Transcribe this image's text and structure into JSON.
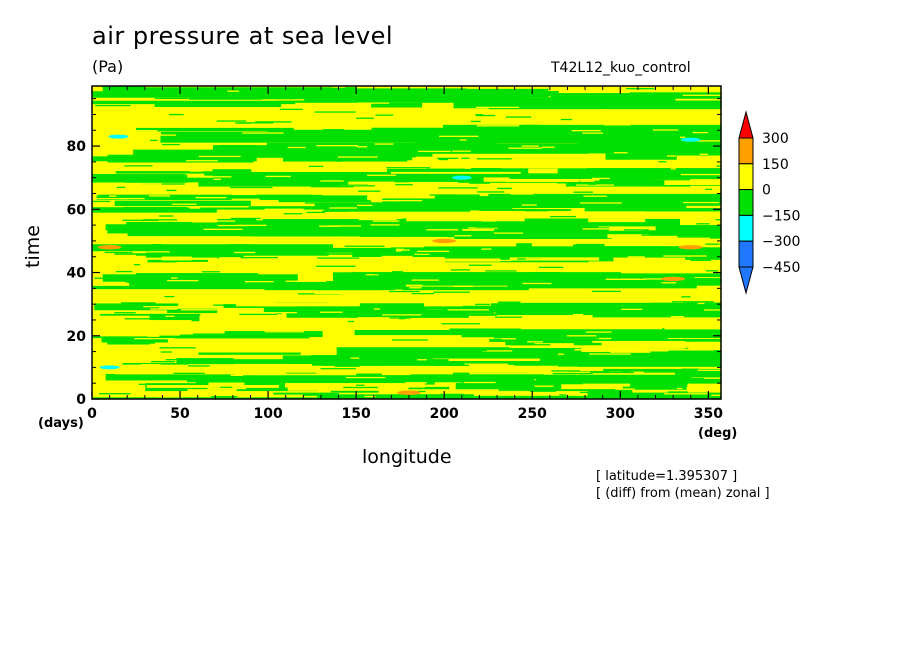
{
  "chart_data": {
    "type": "heatmap",
    "title": "air pressure at sea level",
    "units": "(Pa)",
    "experiment": "T42L12_kuo_control",
    "xlabel": "longitude",
    "ylabel": "time",
    "x_unit": "(deg)",
    "y_unit": "(days)",
    "xlim": [
      0,
      357.1875
    ],
    "ylim": [
      0,
      99
    ],
    "x_ticks": [
      0,
      50,
      100,
      150,
      200,
      250,
      300,
      350
    ],
    "y_ticks": [
      0,
      20,
      40,
      60,
      80
    ],
    "levels": [
      -450,
      -300,
      -150,
      0,
      150,
      300
    ],
    "level_colors": [
      "#1f78ff",
      "#00ffff",
      "#00e000",
      "#ffff00",
      "#ffa000",
      "#ff0000"
    ],
    "colorbar_labels": [
      "300",
      "150",
      "0",
      "−150",
      "−300",
      "−450"
    ],
    "annotations": [
      "[ latitude=1.395307 ]",
      "[ (diff) from (mean) zonal ]"
    ],
    "dominant_bands": {
      "description_values": "predominantly between -150 and 150 Pa",
      "positive_yellow_days": [
        3,
        9,
        17,
        24,
        31,
        43,
        50,
        58,
        67,
        73,
        89
      ],
      "negative_green_days": [
        1,
        6,
        13,
        20,
        28,
        37,
        46,
        54,
        62,
        70,
        78,
        84,
        95
      ],
      "orange_patches": [
        [
          180,
          2
        ],
        [
          10,
          48
        ],
        [
          330,
          38
        ],
        [
          200,
          50
        ],
        [
          340,
          48
        ]
      ],
      "cyan_patches": [
        [
          15,
          83
        ],
        [
          10,
          10
        ],
        [
          340,
          82
        ],
        [
          210,
          70
        ]
      ]
    }
  }
}
